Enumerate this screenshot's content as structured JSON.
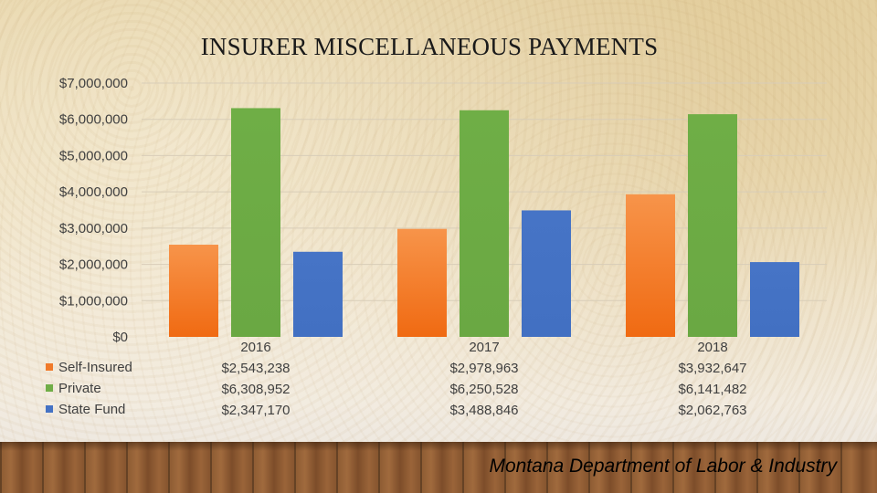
{
  "chart_data": {
    "type": "bar",
    "title": "INSURER MISCELLANEOUS PAYMENTS",
    "categories": [
      "2016",
      "2017",
      "2018"
    ],
    "series": [
      {
        "name": "Self-Insured",
        "values": [
          2543238,
          2978963,
          3932647
        ],
        "labels": [
          "$2,543,238",
          "$2,978,963",
          "$3,932,647"
        ],
        "color": "#f07a2a"
      },
      {
        "name": "Private",
        "values": [
          6308952,
          6250528,
          6141482
        ],
        "labels": [
          "$6,308,952",
          "$6,250,528",
          "$6,141,482"
        ],
        "color": "#70ad47"
      },
      {
        "name": "State Fund",
        "values": [
          2347170,
          3488846,
          2062763
        ],
        "labels": [
          "$2,347,170",
          "$3,488,846",
          "$2,062,763"
        ],
        "color": "#4472c4"
      }
    ],
    "ylim": [
      0,
      7000000
    ],
    "yticks": [
      0,
      1000000,
      2000000,
      3000000,
      4000000,
      5000000,
      6000000,
      7000000
    ],
    "ytick_labels": [
      "$0",
      "$1,000,000",
      "$2,000,000",
      "$3,000,000",
      "$4,000,000",
      "$5,000,000",
      "$6,000,000",
      "$7,000,000"
    ],
    "xlabel": "",
    "ylabel": "",
    "grid": true,
    "legend": "data-table-left"
  },
  "footer": {
    "text": "Montana Department of Labor & Industry"
  }
}
